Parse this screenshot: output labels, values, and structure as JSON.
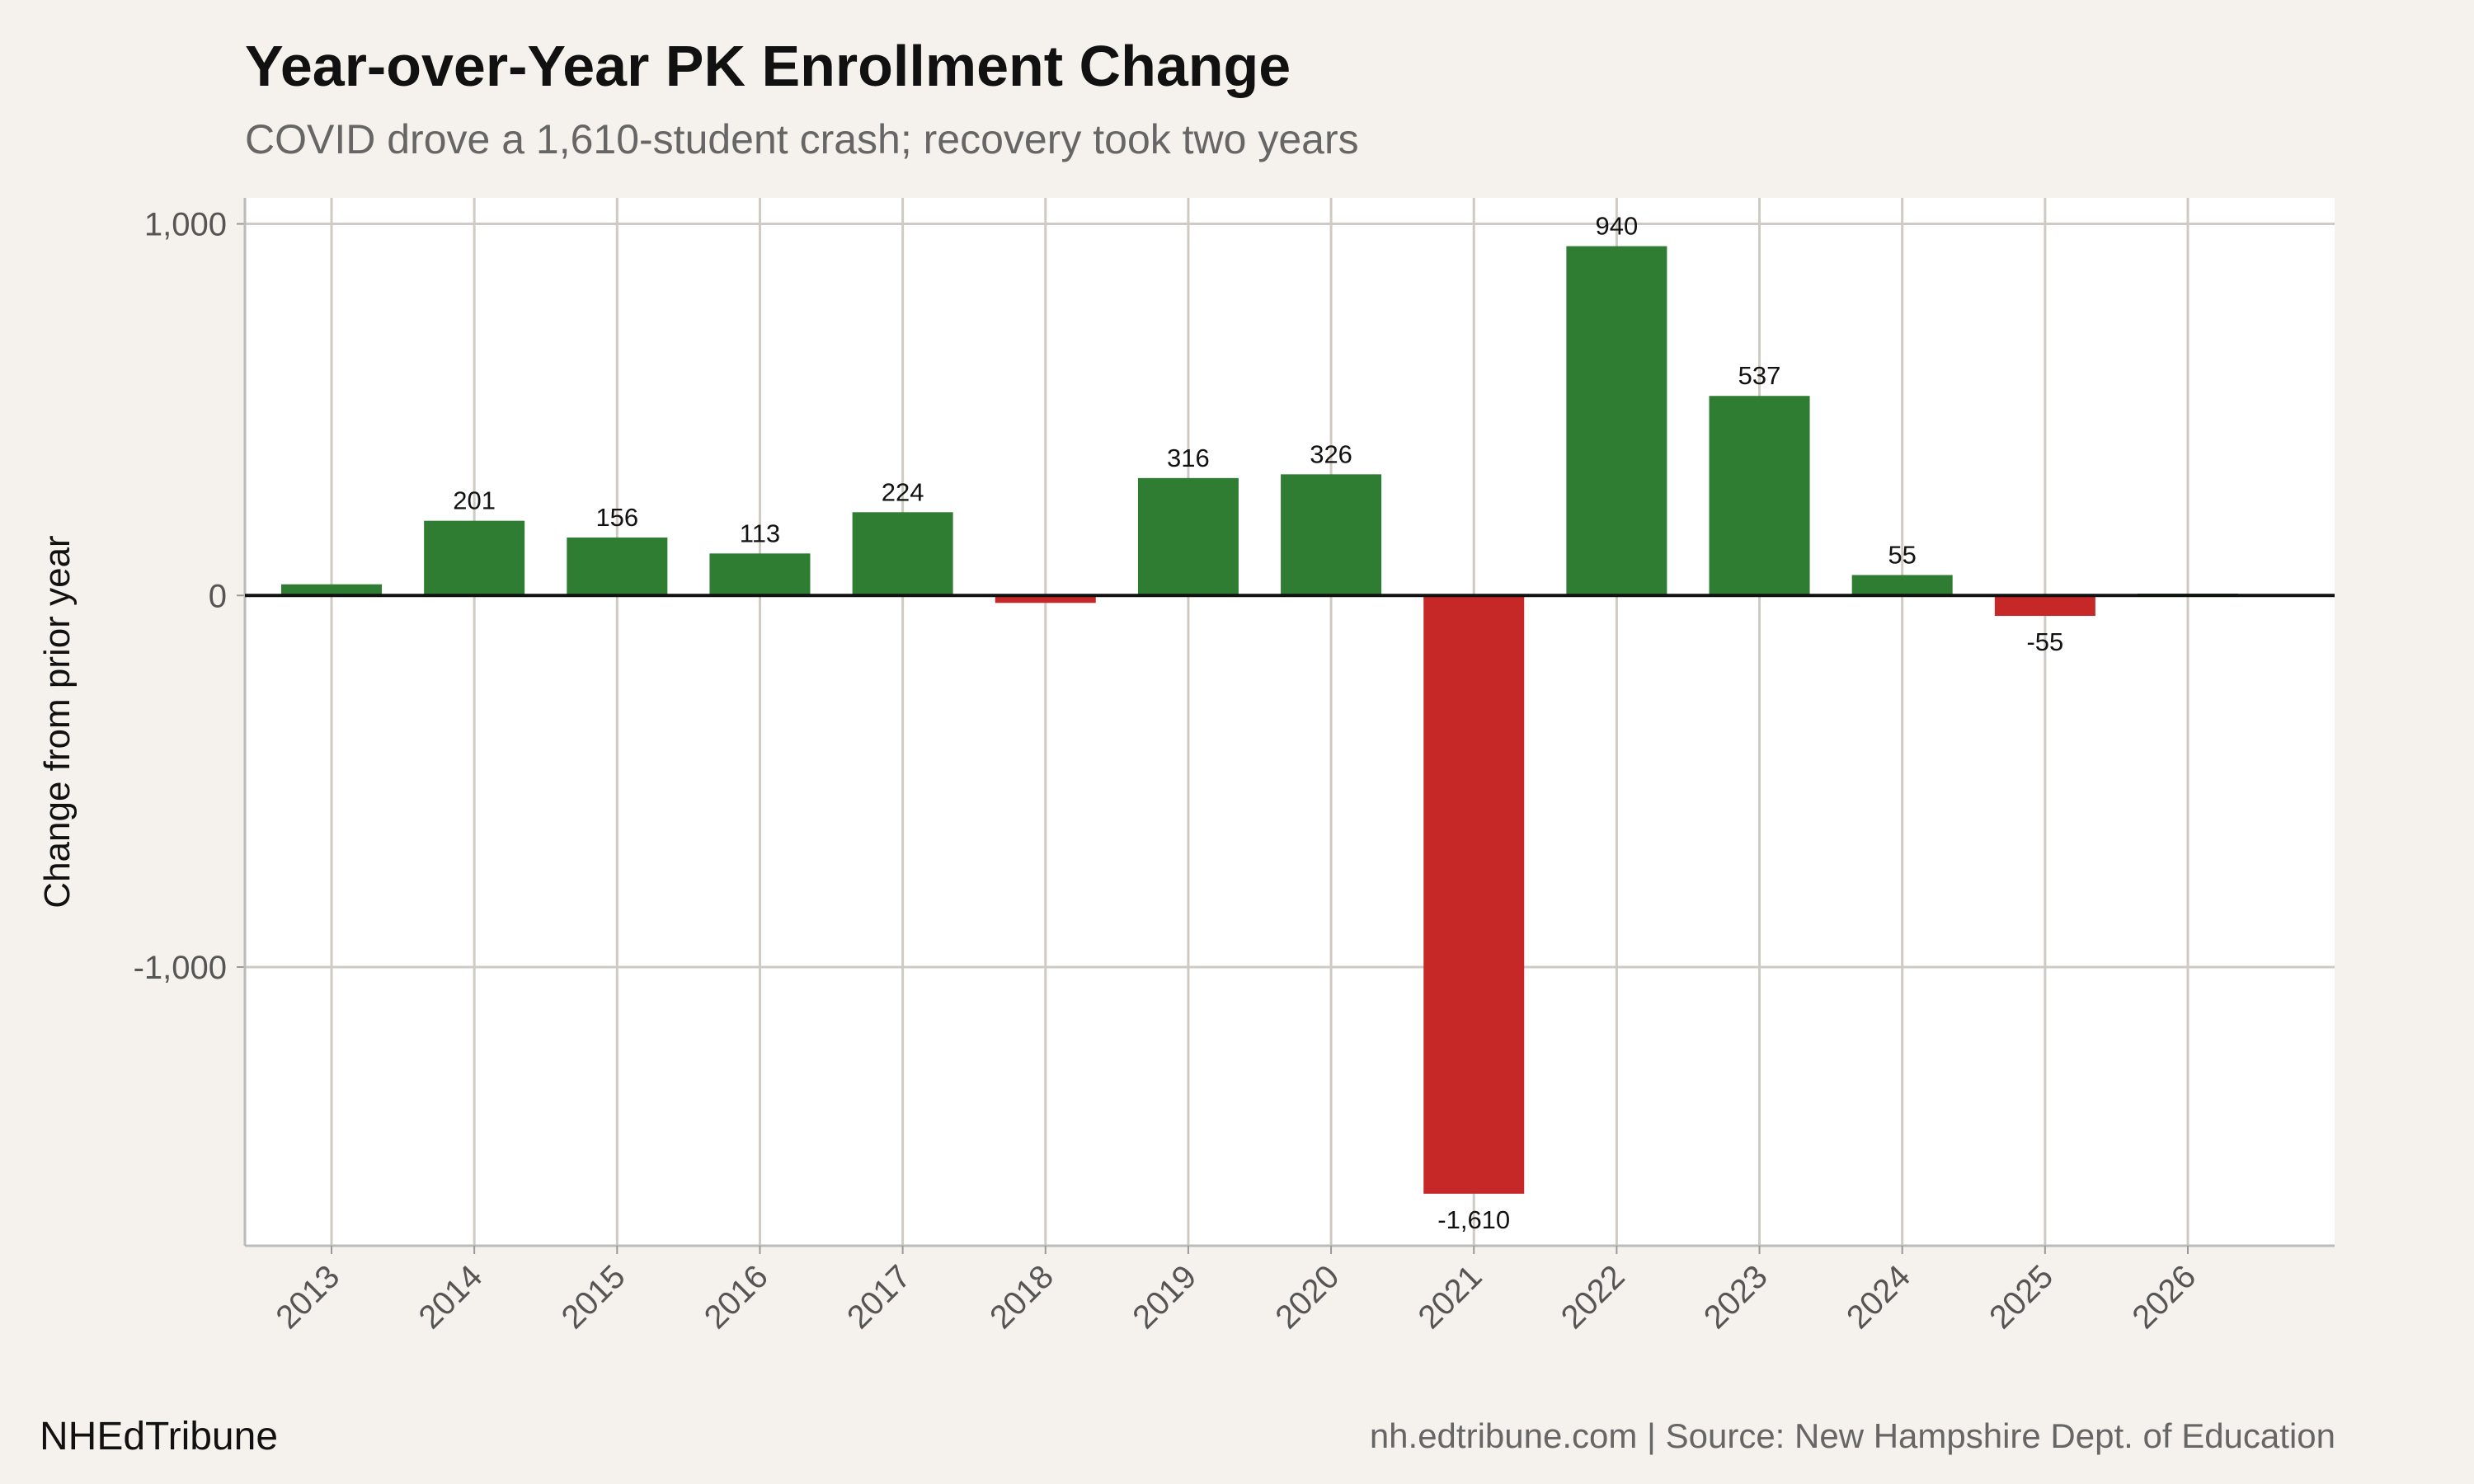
{
  "chart_data": {
    "type": "bar",
    "title": "Year-over-Year PK Enrollment Change",
    "subtitle": "COVID drove a 1,610-student crash; recovery took two years",
    "xlabel": "",
    "ylabel": "Change from prior year",
    "categories": [
      "2013",
      "2014",
      "2015",
      "2016",
      "2017",
      "2018",
      "2019",
      "2020",
      "2021",
      "2022",
      "2023",
      "2024",
      "2025",
      "2026"
    ],
    "values": [
      30,
      201,
      156,
      113,
      224,
      -20,
      316,
      326,
      -1610,
      940,
      537,
      55,
      -55,
      5
    ],
    "data_labels": [
      "",
      "201",
      "156",
      "113",
      "224",
      "",
      "316",
      "326",
      "-1,610",
      "940",
      "537",
      "55",
      "-55",
      ""
    ],
    "yticks": [
      1000,
      0,
      -1000
    ],
    "ytick_labels": [
      "1,000",
      "0",
      "-1,000"
    ],
    "ylim": [
      -1750,
      1070
    ],
    "grid": true,
    "colors": {
      "positive": "#2e7d32",
      "negative": "#c62828",
      "background": "#f5f2ed",
      "panel": "#ffffff",
      "grid": "#cfcac3"
    }
  },
  "footer": {
    "brand": "NHEdTribune",
    "source": "nh.edtribune.com | Source: New Hampshire Dept. of Education"
  }
}
